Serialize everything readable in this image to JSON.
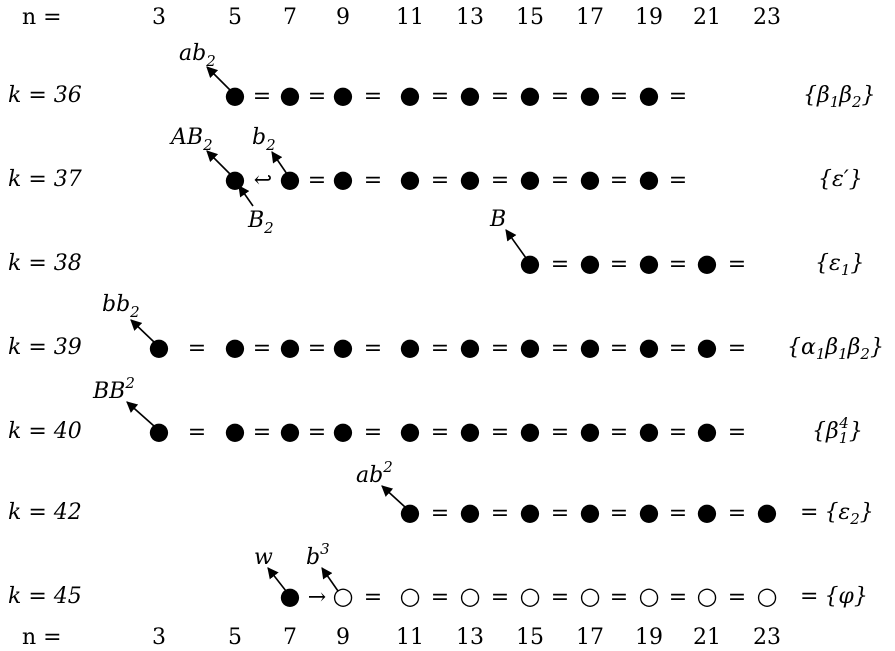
{
  "header": {
    "n_label": "n =",
    "columns": [
      "3",
      "5",
      "7",
      "9",
      "11",
      "13",
      "15",
      "17",
      "19",
      "21",
      "23"
    ]
  },
  "footer": {
    "n_label": "n =",
    "columns": [
      "3",
      "5",
      "7",
      "9",
      "11",
      "13",
      "15",
      "17",
      "19",
      "21",
      "23"
    ]
  },
  "rows": [
    {
      "k_label": "k = 36",
      "tokens": [
        "●",
        "=",
        "●",
        "=",
        "●",
        "=",
        "●",
        "=",
        "●",
        "=",
        "●",
        "=",
        "●",
        "=",
        "●",
        "="
      ],
      "tags": [
        {
          "base": "ab",
          "sub": "2",
          "sup": ""
        }
      ],
      "right": {
        "prefix": "",
        "text": "{β",
        "sub1": "1",
        "mid": "β",
        "sub2": "2",
        "tail": "}"
      }
    },
    {
      "k_label": "k = 37",
      "tokens": [
        "●",
        "↩",
        "●",
        "=",
        "●",
        "=",
        "●",
        "=",
        "●",
        "=",
        "●",
        "=",
        "●",
        "=",
        "●",
        "="
      ],
      "tags": [
        {
          "base": "AB",
          "sub": "2",
          "sup": ""
        },
        {
          "base": "b",
          "sub": "2",
          "sup": ""
        },
        {
          "base": "B",
          "sub": "2",
          "sup": ""
        }
      ],
      "right": {
        "prefix": "",
        "text": "{ε′}"
      }
    },
    {
      "k_label": "k = 38",
      "tokens": [
        "●",
        "=",
        "●",
        "=",
        "●",
        "=",
        "●",
        "="
      ],
      "tags": [
        {
          "base": "B",
          "sub": "",
          "sup": ""
        }
      ],
      "right": {
        "prefix": "",
        "text": "{ε",
        "sub1": "1",
        "tail": "}"
      }
    },
    {
      "k_label": "k = 39",
      "tokens": [
        "●",
        "=",
        "●",
        "=",
        "●",
        "=",
        "●",
        "=",
        "●",
        "=",
        "●",
        "=",
        "●",
        "=",
        "●",
        "=",
        "●",
        "=",
        "●",
        "="
      ],
      "tags": [
        {
          "base": "bb",
          "sub": "2",
          "sup": ""
        }
      ],
      "right": {
        "prefix": "",
        "text": "{α",
        "sub1": "1",
        "mid": "β",
        "sub2": "1",
        "mid2": "β",
        "sub3": "2",
        "tail": "}"
      }
    },
    {
      "k_label": "k = 40",
      "tokens": [
        "●",
        "=",
        "●",
        "=",
        "●",
        "=",
        "●",
        "=",
        "●",
        "=",
        "●",
        "=",
        "●",
        "=",
        "●",
        "=",
        "●",
        "=",
        "●",
        "="
      ],
      "tags": [
        {
          "base": "BB",
          "sub": "",
          "sup": "2"
        }
      ],
      "right": {
        "prefix": "",
        "text": "{β",
        "sub1": "1",
        "sup1": "4",
        "tail": "}"
      }
    },
    {
      "k_label": "k = 42",
      "tokens": [
        "●",
        "=",
        "●",
        "=",
        "●",
        "=",
        "●",
        "=",
        "●",
        "=",
        "●",
        "=",
        "●"
      ],
      "tags": [
        {
          "base": "ab",
          "sub": "",
          "sup": "2"
        }
      ],
      "right": {
        "prefix": "=",
        "text": "{ε",
        "sub1": "2",
        "tail": "}"
      }
    },
    {
      "k_label": "k = 45",
      "tokens": [
        "●",
        "→",
        "○",
        "=",
        "○",
        "=",
        "○",
        "=",
        "○",
        "=",
        "○",
        "=",
        "○",
        "=",
        "○",
        "=",
        "○"
      ],
      "tags": [
        {
          "base": "w",
          "sub": "",
          "sup": ""
        },
        {
          "base": "b",
          "sub": "",
          "sup": "3"
        }
      ],
      "right": {
        "prefix": "=",
        "text": "{φ}"
      }
    }
  ]
}
